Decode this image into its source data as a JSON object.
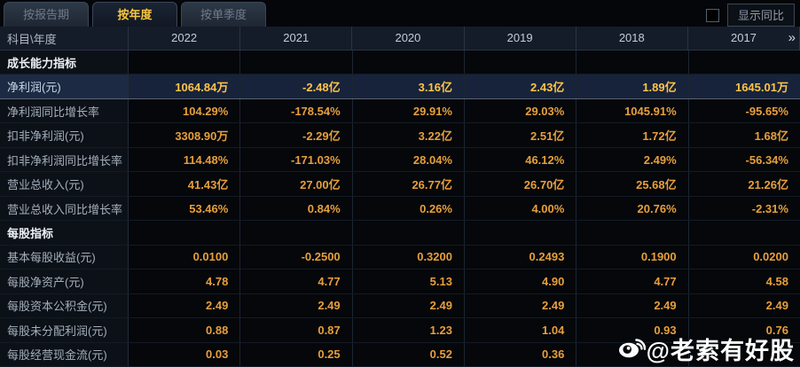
{
  "tabs": [
    {
      "label": "按报告期",
      "active": false
    },
    {
      "label": "按年度",
      "active": true
    },
    {
      "label": "按单季度",
      "active": false
    }
  ],
  "controls": {
    "show_yoy_label": "显示同比",
    "checkbox_checked": false
  },
  "table": {
    "corner_label": "科目\\年度",
    "years": [
      "2022",
      "2021",
      "2020",
      "2019",
      "2018",
      "2017"
    ],
    "more_icon": "»",
    "rows": [
      {
        "type": "section",
        "label": "成长能力指标",
        "values": [
          "",
          "",
          "",
          "",
          "",
          ""
        ]
      },
      {
        "type": "data",
        "highlight": true,
        "label": "净利润(元)",
        "values": [
          "1064.84万",
          "-2.48亿",
          "3.16亿",
          "2.43亿",
          "1.89亿",
          "1645.01万"
        ]
      },
      {
        "type": "data",
        "label": "净利润同比增长率",
        "values": [
          "104.29%",
          "-178.54%",
          "29.91%",
          "29.03%",
          "1045.91%",
          "-95.65%"
        ]
      },
      {
        "type": "data",
        "label": "扣非净利润(元)",
        "values": [
          "3308.90万",
          "-2.29亿",
          "3.22亿",
          "2.51亿",
          "1.72亿",
          "1.68亿"
        ]
      },
      {
        "type": "data",
        "label": "扣非净利润同比增长率",
        "values": [
          "114.48%",
          "-171.03%",
          "28.04%",
          "46.12%",
          "2.49%",
          "-56.34%"
        ]
      },
      {
        "type": "data",
        "label": "营业总收入(元)",
        "values": [
          "41.43亿",
          "27.00亿",
          "26.77亿",
          "26.70亿",
          "25.68亿",
          "21.26亿"
        ]
      },
      {
        "type": "data",
        "label": "营业总收入同比增长率",
        "values": [
          "53.46%",
          "0.84%",
          "0.26%",
          "4.00%",
          "20.76%",
          "-2.31%"
        ]
      },
      {
        "type": "section",
        "label": "每股指标",
        "values": [
          "",
          "",
          "",
          "",
          "",
          ""
        ]
      },
      {
        "type": "data",
        "label": "基本每股收益(元)",
        "values": [
          "0.0100",
          "-0.2500",
          "0.3200",
          "0.2493",
          "0.1900",
          "0.0200"
        ]
      },
      {
        "type": "data",
        "label": "每股净资产(元)",
        "values": [
          "4.78",
          "4.77",
          "5.13",
          "4.90",
          "4.77",
          "4.58"
        ]
      },
      {
        "type": "data",
        "label": "每股资本公积金(元)",
        "values": [
          "2.49",
          "2.49",
          "2.49",
          "2.49",
          "2.49",
          "2.49"
        ]
      },
      {
        "type": "data",
        "label": "每股未分配利润(元)",
        "values": [
          "0.88",
          "0.87",
          "1.23",
          "1.04",
          "0.93",
          "0.76"
        ]
      },
      {
        "type": "data",
        "label": "每股经营现金流(元)",
        "values": [
          "0.03",
          "0.25",
          "0.52",
          "0.36",
          "",
          ""
        ]
      }
    ]
  },
  "watermark": {
    "text": "@老索有好股",
    "icon": "weibo-icon"
  },
  "colors": {
    "accent_tab_gold": "#f7c63f",
    "value_orange": "#e79f3c",
    "highlight_value_gold": "#ffc449",
    "highlight_row_bg": "#17233a",
    "header_bg": "#151c29",
    "label_col_bg": "#0c1118",
    "page_bg": "#04060a"
  }
}
